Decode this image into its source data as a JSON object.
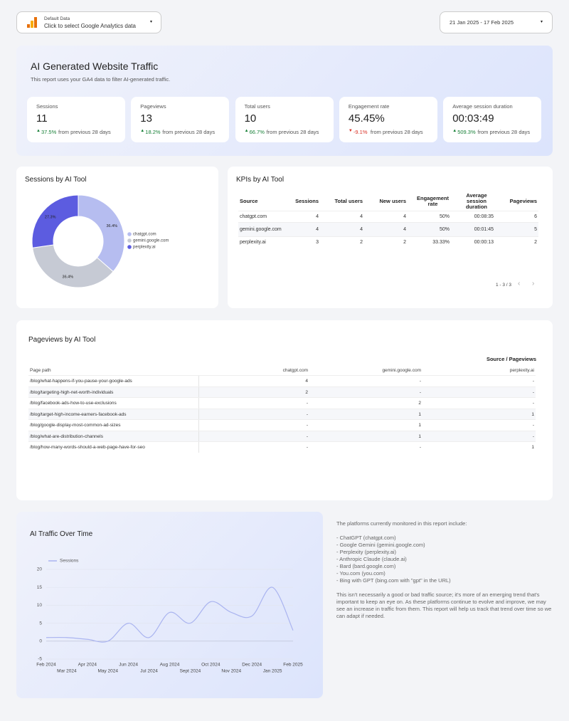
{
  "header": {
    "data_source": {
      "label": "Default Data",
      "value": "Click to select Google Analytics data"
    },
    "date_range": "21 Jan 2025 - 17 Feb 2025"
  },
  "summary": {
    "title": "AI Generated Website Traffic",
    "subtitle": "This report uses your GA4 data to filter AI-generated traffic.",
    "period_note": "from previous 28 days",
    "kpis": [
      {
        "label": "Sessions",
        "value": "11",
        "change": "37.5%"
      },
      {
        "label": "Pageviews",
        "value": "13",
        "change": "18.2%"
      },
      {
        "label": "Total users",
        "value": "10",
        "change": "66.7%"
      },
      {
        "label": "Engagement rate",
        "value": "45.45%",
        "change": "-9.1%"
      },
      {
        "label": "Average session duration",
        "value": "00:03:49",
        "change": "509.3%"
      }
    ]
  },
  "sessions_chart": {
    "type": "pie",
    "title": "Sessions by AI Tool",
    "categories": [
      "chatgpt.com",
      "gemini.google.com",
      "perplexity.ai"
    ],
    "values": [
      36.4,
      36.4,
      27.3
    ],
    "value_labels": [
      "36.4%",
      "36.4%",
      "27.3%"
    ],
    "colors": [
      "#b6bdf0",
      "#c6cad4",
      "#5c5ce0"
    ]
  },
  "kpi_table": {
    "title": "KPIs by AI Tool",
    "columns": [
      "Source",
      "Sessions",
      "Total users",
      "New users",
      "Engagement rate",
      "Average session duration",
      "Pageviews"
    ],
    "rows": [
      [
        "chatgpt.com",
        "4",
        "4",
        "4",
        "50%",
        "00:08:35",
        "6"
      ],
      [
        "gemini.google.com",
        "4",
        "4",
        "4",
        "50%",
        "00:01:45",
        "5"
      ],
      [
        "perplexity.ai",
        "3",
        "2",
        "2",
        "33.33%",
        "00:00:13",
        "2"
      ]
    ],
    "pagination": "1 - 3 / 3"
  },
  "pageviews_table": {
    "title": "Pageviews by AI Tool",
    "group_header": "Source / Pageviews",
    "columns": [
      "Page path",
      "chatgpt.com",
      "gemini.google.com",
      "perplexity.ai"
    ],
    "rows": [
      [
        "/blog/what-happens-if-you-pause-your-google-ads",
        "4",
        "-",
        "-"
      ],
      [
        "/blog/targeting-high-net-worth-individuals",
        "2",
        "-",
        "-"
      ],
      [
        "/blog/facebook-ads-how-to-use-exclusions",
        "-",
        "2",
        "-"
      ],
      [
        "/blog/target-high-income-earners-facebook-ads",
        "-",
        "1",
        "1"
      ],
      [
        "/blog/google-display-most-common-ad-sizes",
        "-",
        "1",
        "-"
      ],
      [
        "/blog/what-are-distribution-channels",
        "-",
        "1",
        "-"
      ],
      [
        "/blog/how-many-words-should-a-web-page-have-for-seo",
        "-",
        "-",
        "1"
      ]
    ]
  },
  "traffic_chart": {
    "type": "line",
    "title": "AI Traffic Over Time",
    "categories": [
      "Feb 2024",
      "Mar 2024",
      "Apr 2024",
      "May 2024",
      "Jun 2024",
      "Jul 2024",
      "Aug 2024",
      "Sept 2024",
      "Oct 2024",
      "Nov 2024",
      "Dec 2024",
      "Jan 2025",
      "Feb 2025"
    ],
    "series": [
      {
        "name": "Sessions",
        "color": "#aab4f0",
        "values": [
          1,
          1,
          0.5,
          0,
          5,
          1,
          8,
          5,
          11,
          8,
          7,
          15,
          3
        ]
      }
    ],
    "ylim": [
      -5,
      20
    ],
    "yticks": [
      -5,
      0,
      5,
      10,
      15,
      20
    ],
    "grid": true
  },
  "notes": {
    "intro": "The platforms currently monitored in this report include:",
    "platforms": [
      "- ChatGPT (chatgpt.com)",
      "- Google Gemini (gemini.google.com)",
      "- Perplexity (perplexity.ai)",
      "- Anthropic Claude (claude.ai)",
      "- Bard (bard.google.com)",
      "- You.com (you.com)",
      "- Bing with GPT (bing.com with \"gpt\" in the URL)"
    ],
    "closing": "This isn't necessarily a good or bad traffic source; it's more of an emerging trend that's important to keep an eye on. As these platforms continue to evolve and improve, we may see an increase in traffic from them. This report will help us track that trend over time so we can adapt if needed."
  }
}
